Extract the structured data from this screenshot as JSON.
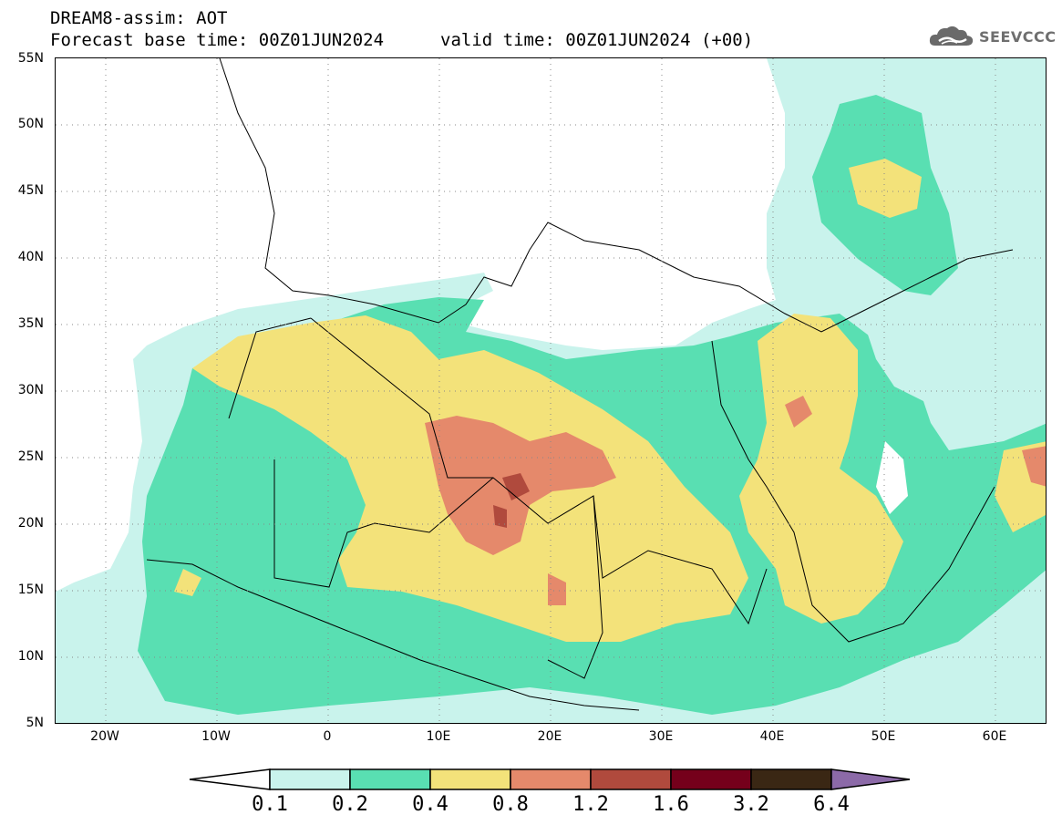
{
  "header": {
    "line1": "DREAM8-assim: AOT",
    "base_time": "Forecast base time: 00Z01JUN2024",
    "valid_time": "valid time: 00Z01JUN2024 (+00)"
  },
  "logo": {
    "text": "SEEVCCC",
    "icon": "cloud-logo-icon"
  },
  "map": {
    "lat_labels": [
      "55N",
      "50N",
      "45N",
      "40N",
      "35N",
      "30N",
      "25N",
      "20N",
      "15N",
      "10N",
      "5N"
    ],
    "lon_labels": [
      "20W",
      "10W",
      "0",
      "10E",
      "20E",
      "30E",
      "40E",
      "50E",
      "60E"
    ]
  },
  "colorbar": {
    "labels": [
      "0.1",
      "0.2",
      "0.4",
      "0.8",
      "1.2",
      "1.6",
      "3.2",
      "6.4"
    ],
    "colors": [
      "#c9f3ec",
      "#59dfb2",
      "#f3e27a",
      "#e5896b",
      "#b04a3d",
      "#75001b",
      "#3a2714",
      "#8c6aa8"
    ]
  }
}
